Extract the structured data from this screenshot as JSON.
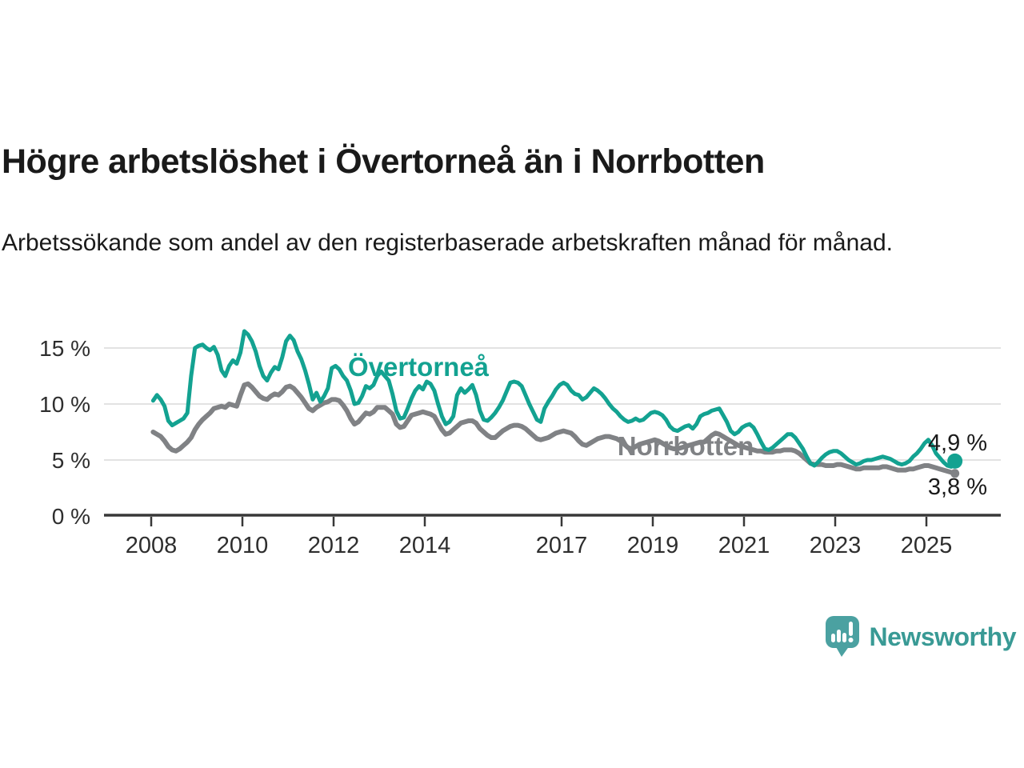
{
  "header": {
    "title": "Högre arbetslöshet i Övertorneå än i Norrbotten",
    "subtitle": "Arbetssökande som andel av den registerbaserade arbetskraften månad för månad."
  },
  "chart_data": {
    "type": "line",
    "unit": "percent",
    "frequency": "monthly",
    "start": "2008-01",
    "end": "2025-08",
    "grid": "horizontal",
    "legend_position": "inline-labels",
    "ylim": [
      0,
      17.2
    ],
    "y_ticks": [
      0,
      5,
      10,
      15
    ],
    "y_tick_labels": [
      "0 %",
      "5 %",
      "10 %",
      "15 %"
    ],
    "x_ticks": [
      2008,
      2010,
      2012,
      2014,
      2017,
      2019,
      2021,
      2023,
      2025
    ],
    "series": [
      {
        "name": "Övertorneå",
        "label": "Övertorneå",
        "color": "#13a291",
        "end_label": "4,9 %",
        "end_value": 4.9,
        "values": [
          10.3,
          10.8,
          10.4,
          9.8,
          8.5,
          8.1,
          8.3,
          8.5,
          8.7,
          9.2,
          12.5,
          15.0,
          15.2,
          15.3,
          15.0,
          14.8,
          15.1,
          14.4,
          13.0,
          12.5,
          13.4,
          13.9,
          13.6,
          14.6,
          16.5,
          16.2,
          15.6,
          14.7,
          13.4,
          12.5,
          12.1,
          12.8,
          13.3,
          13.1,
          14.2,
          15.6,
          16.1,
          15.7,
          14.7,
          14.0,
          13.0,
          11.8,
          10.4,
          11.0,
          10.2,
          10.7,
          11.4,
          13.2,
          13.4,
          13.1,
          12.5,
          12.1,
          11.2,
          10.0,
          10.1,
          10.7,
          11.6,
          11.4,
          11.7,
          12.5,
          12.9,
          12.5,
          12.1,
          10.9,
          9.4,
          8.7,
          8.8,
          9.6,
          10.5,
          11.2,
          11.6,
          11.3,
          12.0,
          11.8,
          11.2,
          10.0,
          8.9,
          8.2,
          8.4,
          8.9,
          10.8,
          11.4,
          11.0,
          11.3,
          11.7,
          10.8,
          9.4,
          8.6,
          8.5,
          8.8,
          9.2,
          9.7,
          10.3,
          11.1,
          11.9,
          12.0,
          11.9,
          11.6,
          10.8,
          10.0,
          9.3,
          8.6,
          8.4,
          9.6,
          10.2,
          10.7,
          11.3,
          11.7,
          11.9,
          11.7,
          11.2,
          10.9,
          10.8,
          10.4,
          10.6,
          11.0,
          11.4,
          11.2,
          10.9,
          10.5,
          10.0,
          9.6,
          9.3,
          8.9,
          8.6,
          8.4,
          8.5,
          8.7,
          8.5,
          8.6,
          8.9,
          9.2,
          9.3,
          9.2,
          9.0,
          8.6,
          8.0,
          7.7,
          7.6,
          7.8,
          8.0,
          8.1,
          7.8,
          8.2,
          8.9,
          9.1,
          9.2,
          9.4,
          9.5,
          9.6,
          9.0,
          8.4,
          7.6,
          7.3,
          7.5,
          7.9,
          8.1,
          8.2,
          7.9,
          7.3,
          6.6,
          6.0,
          5.9,
          6.1,
          6.4,
          6.7,
          7.0,
          7.3,
          7.3,
          7.0,
          6.5,
          6.0,
          5.3,
          4.7,
          4.5,
          4.8,
          5.2,
          5.5,
          5.7,
          5.8,
          5.8,
          5.6,
          5.3,
          5.0,
          4.8,
          4.6,
          4.7,
          4.9,
          5.0,
          5.0,
          5.1,
          5.2,
          5.3,
          5.2,
          5.1,
          4.9,
          4.7,
          4.6,
          4.7,
          4.9,
          5.3,
          5.6,
          6.0,
          6.5,
          6.8,
          6.3,
          5.6,
          5.2,
          4.8,
          4.5,
          4.4,
          4.9
        ]
      },
      {
        "name": "Norrbotten",
        "label": "Norrbotten",
        "color": "#808285",
        "end_label": "3,8 %",
        "end_value": 3.8,
        "values": [
          7.5,
          7.3,
          7.1,
          6.7,
          6.2,
          5.9,
          5.8,
          6.0,
          6.3,
          6.6,
          7.0,
          7.7,
          8.2,
          8.6,
          8.9,
          9.2,
          9.6,
          9.7,
          9.8,
          9.7,
          10.0,
          9.9,
          9.8,
          10.8,
          11.7,
          11.8,
          11.5,
          11.1,
          10.7,
          10.5,
          10.4,
          10.7,
          10.9,
          10.8,
          11.1,
          11.5,
          11.6,
          11.4,
          11.0,
          10.6,
          10.1,
          9.6,
          9.4,
          9.7,
          9.9,
          10.1,
          10.2,
          10.4,
          10.4,
          10.3,
          9.9,
          9.4,
          8.7,
          8.2,
          8.4,
          8.8,
          9.2,
          9.1,
          9.3,
          9.7,
          9.7,
          9.7,
          9.4,
          9.1,
          8.2,
          7.9,
          8.0,
          8.5,
          9.0,
          9.1,
          9.2,
          9.3,
          9.2,
          9.1,
          8.9,
          8.3,
          7.7,
          7.3,
          7.4,
          7.7,
          8.0,
          8.3,
          8.4,
          8.5,
          8.5,
          8.3,
          7.8,
          7.5,
          7.2,
          7.0,
          7.0,
          7.3,
          7.6,
          7.8,
          8.0,
          8.1,
          8.1,
          8.0,
          7.8,
          7.5,
          7.2,
          6.9,
          6.8,
          6.9,
          7.0,
          7.2,
          7.4,
          7.5,
          7.6,
          7.5,
          7.4,
          7.1,
          6.7,
          6.4,
          6.3,
          6.5,
          6.7,
          6.9,
          7.0,
          7.1,
          7.1,
          7.0,
          6.9,
          6.7,
          6.4,
          6.1,
          6.0,
          6.2,
          6.4,
          6.5,
          6.6,
          6.7,
          6.8,
          6.7,
          6.5,
          6.3,
          6.1,
          6.0,
          6.0,
          6.1,
          6.2,
          6.3,
          6.4,
          6.5,
          6.6,
          6.6,
          6.9,
          7.2,
          7.4,
          7.3,
          7.1,
          6.9,
          6.7,
          6.5,
          6.3,
          6.2,
          6.1,
          6.0,
          5.9,
          5.8,
          5.8,
          5.7,
          5.7,
          5.7,
          5.8,
          5.8,
          5.9,
          5.9,
          5.9,
          5.8,
          5.6,
          5.3,
          5.0,
          4.7,
          4.6,
          4.6,
          4.6,
          4.5,
          4.5,
          4.5,
          4.6,
          4.6,
          4.5,
          4.4,
          4.3,
          4.2,
          4.2,
          4.3,
          4.3,
          4.3,
          4.3,
          4.3,
          4.4,
          4.4,
          4.3,
          4.2,
          4.1,
          4.1,
          4.1,
          4.2,
          4.2,
          4.3,
          4.4,
          4.5,
          4.5,
          4.4,
          4.3,
          4.2,
          4.1,
          4.0,
          3.9,
          3.8
        ]
      }
    ]
  },
  "footer": {
    "brand": "Newsworthy"
  },
  "colors": {
    "accent_teal": "#13a291",
    "series_gray": "#808285",
    "gridline": "#e3e3e3",
    "axis": "#333333",
    "text": "#1a1a1a",
    "logo_bubble": "#4ba1a1",
    "logo_text": "#399a95"
  }
}
